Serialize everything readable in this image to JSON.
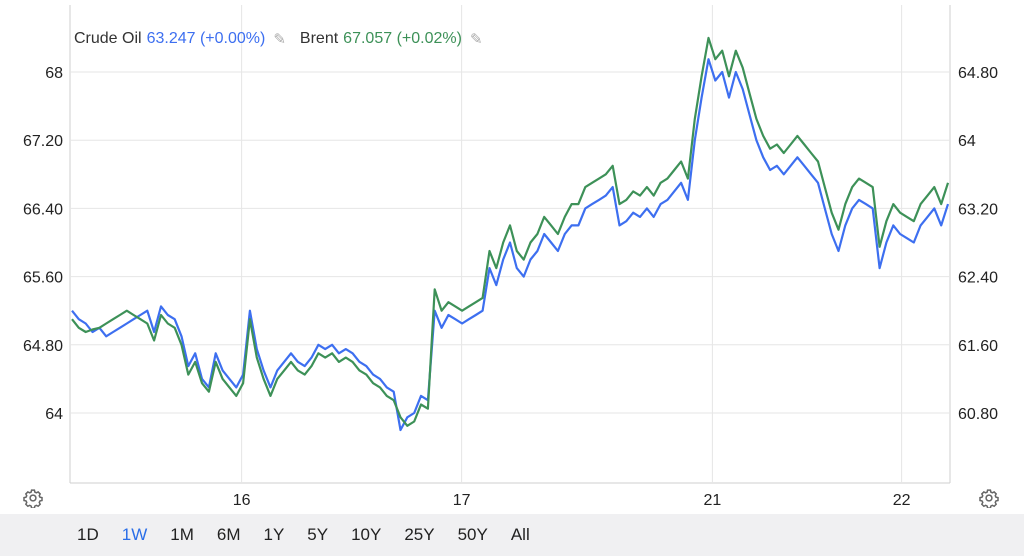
{
  "legend": {
    "items": [
      {
        "name": "Crude Oil",
        "value": "63.247",
        "change": "(+0.00%)",
        "color": "#3d6ff0"
      },
      {
        "name": "Brent",
        "value": "67.057",
        "change": "(+0.02%)",
        "color": "#3d9158"
      }
    ]
  },
  "ranges": {
    "items": [
      "1D",
      "1W",
      "1M",
      "6M",
      "1Y",
      "5Y",
      "10Y",
      "25Y",
      "50Y",
      "All"
    ],
    "active": "1W"
  },
  "chart_data": {
    "type": "line",
    "grid": true,
    "x_ticks": [
      {
        "label": "16",
        "x": 0.195
      },
      {
        "label": "17",
        "x": 0.445
      },
      {
        "label": "21",
        "x": 0.73
      },
      {
        "label": "22",
        "x": 0.945
      }
    ],
    "left_axis": {
      "ticks": [
        "68",
        "67.20",
        "66.40",
        "65.60",
        "64.80",
        "64"
      ],
      "range": [
        63.2,
        68.4
      ]
    },
    "right_axis": {
      "ticks": [
        "64.80",
        "64",
        "63.20",
        "62.40",
        "61.60",
        "60.80"
      ],
      "range": [
        60.0,
        65.2
      ]
    },
    "series": [
      {
        "name": "Crude Oil",
        "axis": "right",
        "color": "#3d6ff0",
        "values": [
          62.0,
          61.9,
          61.85,
          61.75,
          61.8,
          61.7,
          61.75,
          61.8,
          61.85,
          61.9,
          61.95,
          62.0,
          61.75,
          62.05,
          61.95,
          61.9,
          61.7,
          61.35,
          61.5,
          61.2,
          61.1,
          61.5,
          61.3,
          61.2,
          61.1,
          61.25,
          62.0,
          61.55,
          61.3,
          61.1,
          61.3,
          61.4,
          61.5,
          61.4,
          61.35,
          61.45,
          61.6,
          61.55,
          61.6,
          61.5,
          61.55,
          61.5,
          61.4,
          61.35,
          61.25,
          61.2,
          61.1,
          61.05,
          60.6,
          60.75,
          60.8,
          61.0,
          60.95,
          62.0,
          61.8,
          61.95,
          61.9,
          61.85,
          61.9,
          61.95,
          62.0,
          62.5,
          62.3,
          62.6,
          62.8,
          62.5,
          62.4,
          62.6,
          62.7,
          62.9,
          62.8,
          62.7,
          62.9,
          63.0,
          63.0,
          63.2,
          63.25,
          63.3,
          63.35,
          63.45,
          63.0,
          63.05,
          63.15,
          63.1,
          63.2,
          63.1,
          63.25,
          63.3,
          63.4,
          63.5,
          63.3,
          64.0,
          64.5,
          64.95,
          64.7,
          64.8,
          64.5,
          64.8,
          64.6,
          64.3,
          64.0,
          63.8,
          63.65,
          63.7,
          63.6,
          63.7,
          63.8,
          63.7,
          63.6,
          63.5,
          63.2,
          62.9,
          62.7,
          63.0,
          63.2,
          63.3,
          63.25,
          63.2,
          62.5,
          62.8,
          63.0,
          62.9,
          62.85,
          62.8,
          63.0,
          63.1,
          63.2,
          63.0,
          63.25
        ]
      },
      {
        "name": "Brent",
        "axis": "left",
        "color": "#3d9158",
        "values": [
          65.1,
          65.0,
          64.95,
          64.98,
          65.0,
          65.05,
          65.1,
          65.15,
          65.2,
          65.15,
          65.1,
          65.05,
          64.85,
          65.15,
          65.05,
          65.0,
          64.8,
          64.45,
          64.6,
          64.35,
          64.25,
          64.6,
          64.4,
          64.3,
          64.2,
          64.35,
          65.1,
          64.65,
          64.4,
          64.2,
          64.4,
          64.5,
          64.6,
          64.5,
          64.45,
          64.55,
          64.7,
          64.65,
          64.7,
          64.6,
          64.65,
          64.6,
          64.5,
          64.45,
          64.35,
          64.3,
          64.2,
          64.15,
          63.95,
          63.85,
          63.9,
          64.1,
          64.05,
          65.45,
          65.2,
          65.3,
          65.25,
          65.2,
          65.25,
          65.3,
          65.35,
          65.9,
          65.7,
          66.0,
          66.2,
          65.9,
          65.8,
          66.0,
          66.1,
          66.3,
          66.2,
          66.1,
          66.3,
          66.45,
          66.45,
          66.65,
          66.7,
          66.75,
          66.8,
          66.9,
          66.45,
          66.5,
          66.6,
          66.55,
          66.65,
          66.55,
          66.7,
          66.75,
          66.85,
          66.95,
          66.75,
          67.45,
          67.95,
          68.4,
          68.15,
          68.25,
          67.95,
          68.25,
          68.05,
          67.75,
          67.45,
          67.25,
          67.1,
          67.15,
          67.05,
          67.15,
          67.25,
          67.15,
          67.05,
          66.95,
          66.65,
          66.35,
          66.15,
          66.45,
          66.65,
          66.75,
          66.7,
          66.65,
          65.95,
          66.25,
          66.45,
          66.35,
          66.3,
          66.25,
          66.45,
          66.55,
          66.65,
          66.45,
          66.7
        ]
      }
    ]
  }
}
